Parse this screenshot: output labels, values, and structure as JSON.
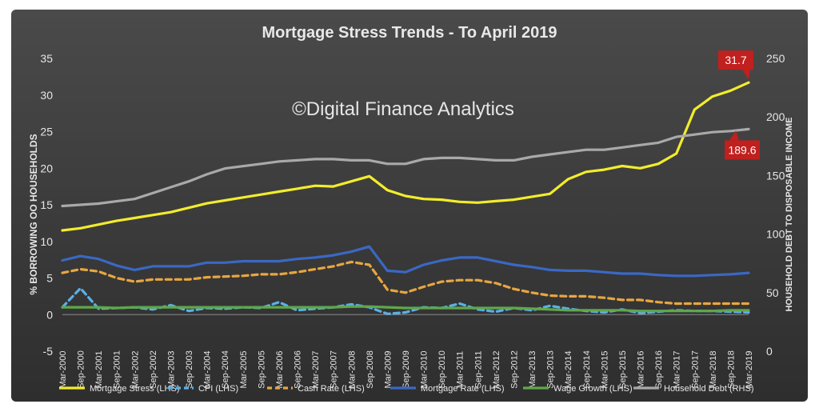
{
  "chart_data": {
    "type": "line",
    "title": "Mortgage Stress Trends - To April 2019",
    "watermark": "©Digital Finance Analytics",
    "ylabel_left": "% BORROWING OO HOUSEHOLDS",
    "ylabel_right": "HOUSEHOLD DEBT TO DISPOSABLE INCOME",
    "ylim_left": [
      -5,
      35
    ],
    "ylim_right": [
      0,
      250
    ],
    "yticks_left": [
      "-5",
      "0",
      "5",
      "10",
      "15",
      "20",
      "25",
      "30",
      "35"
    ],
    "yticks_right": [
      "0",
      "50",
      "100",
      "150",
      "200",
      "250"
    ],
    "grid": false,
    "legend_position": "bottom",
    "categories": [
      "Mar-2000",
      "Sep-2000",
      "Mar-2001",
      "Sep-2001",
      "Mar-2002",
      "Sep-2002",
      "Mar-2003",
      "Sep-2003",
      "Mar-2004",
      "Sep-2004",
      "Mar-2005",
      "Sep-2005",
      "Mar-2006",
      "Sep-2006",
      "Mar-2007",
      "Sep-2007",
      "Mar-2008",
      "Sep-2008",
      "Mar-2009",
      "Sep-2009",
      "Mar-2010",
      "Sep-2010",
      "Mar-2011",
      "Sep-2011",
      "Mar-2012",
      "Sep-2012",
      "Mar-2013",
      "Sep-2013",
      "Mar-2014",
      "Sep-2014",
      "Mar-2015",
      "Sep-2015",
      "Mar-2016",
      "Sep-2016",
      "Mar-2017",
      "Sep-2017",
      "Mar-2018",
      "Sep-2018",
      "Mar-2019"
    ],
    "series": [
      {
        "name": "Mortgage Stress (LHS)",
        "axis": "left",
        "color": "#f2ec2c",
        "dash": "solid",
        "values": [
          11.5,
          11.8,
          12.3,
          12.8,
          13.2,
          13.6,
          14.0,
          14.6,
          15.2,
          15.6,
          16.0,
          16.4,
          16.8,
          17.2,
          17.6,
          17.5,
          18.2,
          18.9,
          17.0,
          16.2,
          15.8,
          15.7,
          15.4,
          15.3,
          15.5,
          15.7,
          16.1,
          16.5,
          18.5,
          19.5,
          19.8,
          20.3,
          20.0,
          20.6,
          22.0,
          28.0,
          29.8,
          30.6,
          31.7
        ]
      },
      {
        "name": "CPI (LHS)",
        "axis": "left",
        "color": "#5ab0e8",
        "dash": "dash",
        "values": [
          1.0,
          3.6,
          0.8,
          0.9,
          1.0,
          0.7,
          1.3,
          0.5,
          0.9,
          0.8,
          1.0,
          0.9,
          1.7,
          0.6,
          0.8,
          1.0,
          1.4,
          1.0,
          0.1,
          0.3,
          1.0,
          0.9,
          1.5,
          0.7,
          0.4,
          0.9,
          0.6,
          1.2,
          0.8,
          0.5,
          0.3,
          0.7,
          0.2,
          0.4,
          0.6,
          0.5,
          0.5,
          0.4,
          0.3
        ]
      },
      {
        "name": "Cash Rate (LHS)",
        "axis": "left",
        "color": "#e8a640",
        "dash": "dash",
        "values": [
          5.7,
          6.2,
          5.9,
          5.0,
          4.5,
          4.8,
          4.8,
          4.8,
          5.1,
          5.2,
          5.3,
          5.5,
          5.5,
          5.8,
          6.2,
          6.6,
          7.2,
          6.8,
          3.4,
          3.0,
          3.8,
          4.5,
          4.7,
          4.7,
          4.3,
          3.5,
          3.0,
          2.6,
          2.5,
          2.5,
          2.3,
          2.0,
          2.0,
          1.7,
          1.5,
          1.5,
          1.5,
          1.5,
          1.5
        ]
      },
      {
        "name": "Mortgage Rate (LHS)",
        "axis": "left",
        "color": "#3a68c4",
        "dash": "solid",
        "values": [
          7.4,
          8.0,
          7.6,
          6.7,
          6.1,
          6.6,
          6.6,
          6.6,
          7.1,
          7.1,
          7.3,
          7.3,
          7.3,
          7.6,
          7.8,
          8.1,
          8.6,
          9.3,
          6.0,
          5.8,
          6.8,
          7.4,
          7.8,
          7.8,
          7.3,
          6.8,
          6.5,
          6.1,
          6.0,
          6.0,
          5.8,
          5.6,
          5.6,
          5.4,
          5.3,
          5.3,
          5.4,
          5.5,
          5.7
        ]
      },
      {
        "name": "Wage Growth (LHS)",
        "axis": "left",
        "color": "#5ea84a",
        "dash": "solid",
        "values": [
          1.0,
          1.0,
          1.0,
          0.9,
          1.0,
          1.0,
          1.0,
          1.0,
          1.0,
          1.0,
          1.0,
          1.0,
          1.0,
          1.0,
          1.0,
          1.0,
          1.1,
          1.1,
          1.0,
          0.9,
          0.9,
          0.9,
          0.9,
          0.9,
          0.9,
          0.9,
          0.8,
          0.7,
          0.6,
          0.6,
          0.6,
          0.6,
          0.5,
          0.5,
          0.5,
          0.5,
          0.5,
          0.6,
          0.6
        ]
      },
      {
        "name": "Household Debt (RHS)",
        "axis": "right",
        "color": "#a9a9a9",
        "dash": "solid",
        "values": [
          124,
          125,
          126,
          128,
          130,
          135,
          140,
          145,
          151,
          156,
          158,
          160,
          162,
          163,
          164,
          164,
          163,
          163,
          160,
          160,
          164,
          165,
          165,
          164,
          163,
          163,
          166,
          168,
          170,
          172,
          172,
          174,
          176,
          178,
          183,
          185,
          187,
          188,
          189.6
        ]
      }
    ],
    "annotations": [
      {
        "text": "31.7",
        "series": "Mortgage Stress (LHS)"
      },
      {
        "text": "189.6",
        "series": "Household Debt (RHS)"
      }
    ]
  }
}
